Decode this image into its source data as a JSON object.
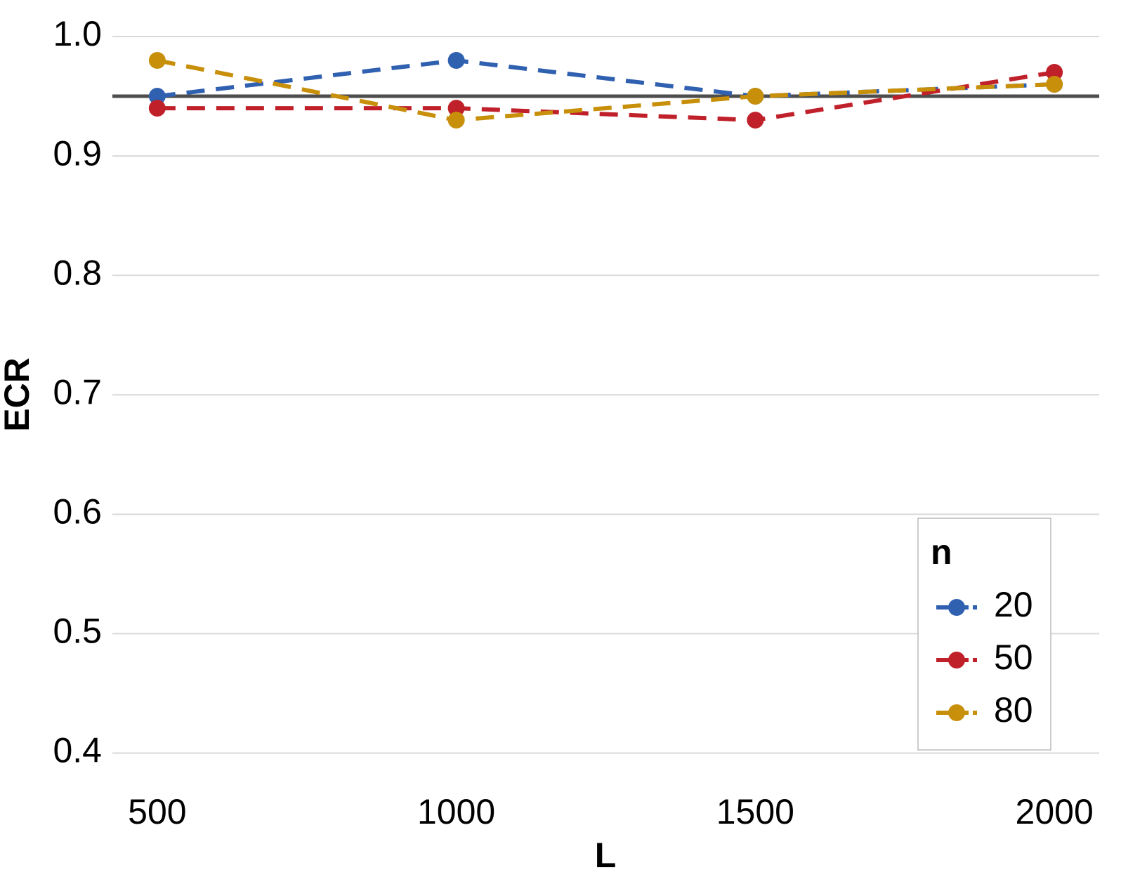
{
  "chart_data": {
    "type": "line",
    "x_label": "L",
    "y_label": "ECR",
    "x": [
      500,
      1000,
      1500,
      2000
    ],
    "series": [
      {
        "name": "20",
        "color": "#3060b0",
        "values": [
          0.95,
          0.98,
          0.95,
          0.96
        ]
      },
      {
        "name": "50",
        "color": "#c0202a",
        "values": [
          0.94,
          0.94,
          0.93,
          0.97
        ]
      },
      {
        "name": "80",
        "color": "#c8900a",
        "values": [
          0.98,
          0.93,
          0.95,
          0.96
        ]
      }
    ],
    "xlim": [
      425,
      2075
    ],
    "xticks": [
      500,
      1000,
      1500,
      2000
    ],
    "ylim": [
      0.375,
      1.03
    ],
    "yticks": [
      {
        "value": 0.4,
        "label": "0.4"
      },
      {
        "value": 0.5,
        "label": "0.5"
      },
      {
        "value": 0.6,
        "label": "0.6"
      },
      {
        "value": 0.7,
        "label": "0.7"
      },
      {
        "value": 0.8,
        "label": "0.8"
      },
      {
        "value": 0.9,
        "label": "0.9"
      },
      {
        "value": 1.0,
        "label": "1.0"
      }
    ],
    "hline": 0.95,
    "hline_color": "#4d4d4d",
    "grid": true,
    "legend_title": "n",
    "legend_position": "bottom-right"
  }
}
